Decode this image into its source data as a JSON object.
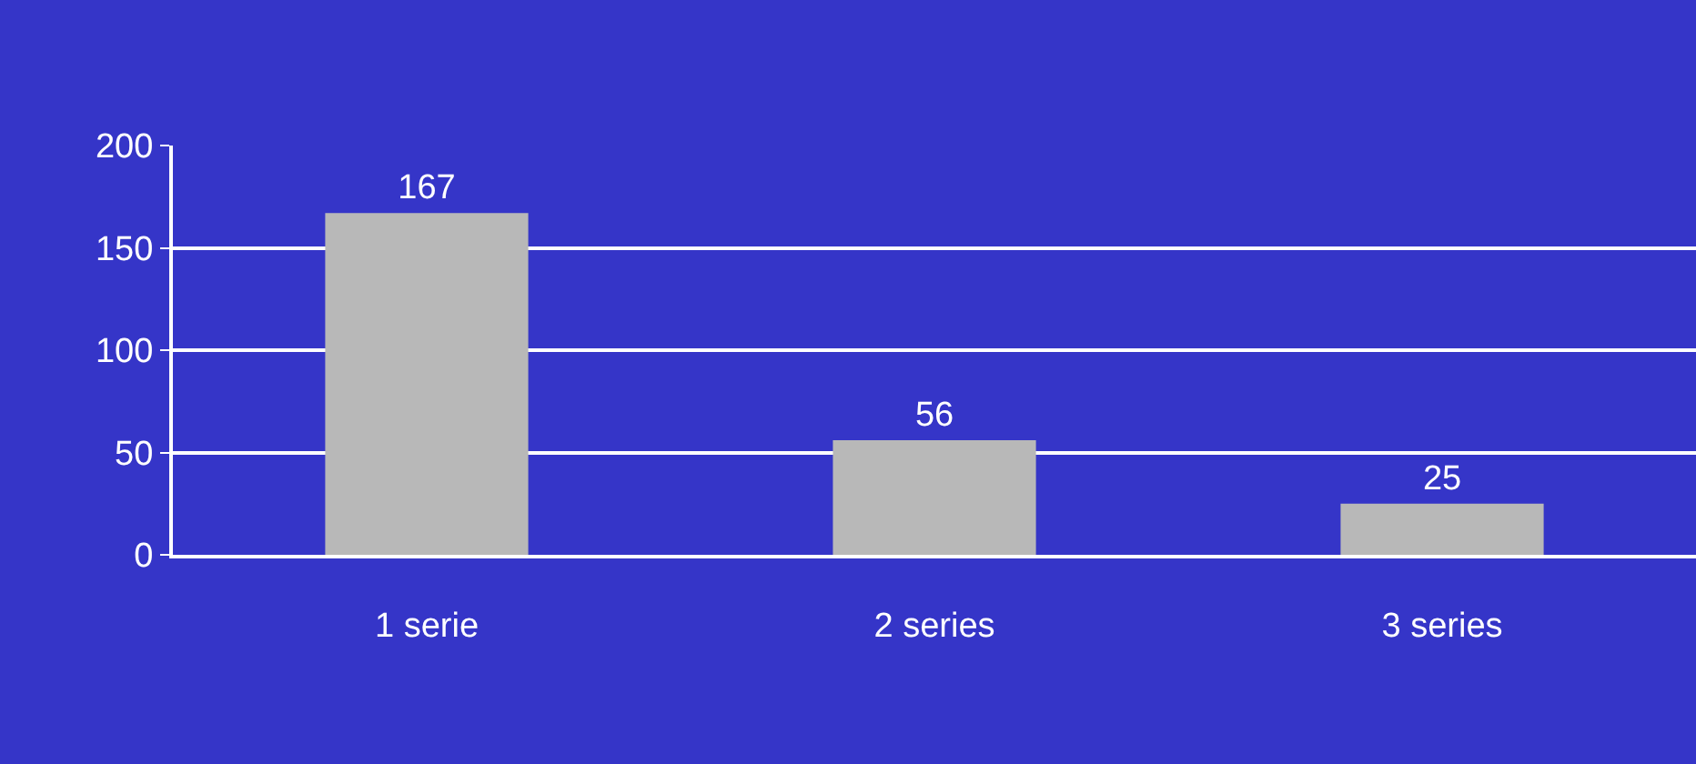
{
  "chart_data": {
    "type": "bar",
    "categories": [
      "1 serie",
      "2 series",
      "3 series"
    ],
    "values": [
      167,
      56,
      25
    ],
    "color": "#b8b8b8",
    "ylim": [
      0,
      200
    ],
    "yticks": [
      0,
      50,
      100,
      150,
      200
    ],
    "grid": "y",
    "data_labels": true,
    "legend": false
  }
}
